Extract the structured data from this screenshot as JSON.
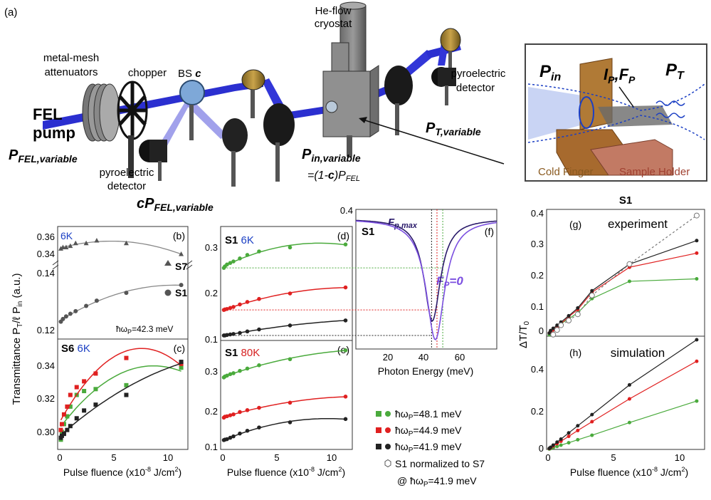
{
  "setup": {
    "panel_tag": "(a)",
    "he_flow_1": "He-flow",
    "he_flow_2": "cryostat",
    "mesh_1": "metal-mesh",
    "mesh_2": "attenuators",
    "chopper": "chopper",
    "bs": "BS",
    "bs_c": "c",
    "pyro_right_1": "pyroelectric",
    "pyro_right_2": "detector",
    "pyro_left_1": "pyroelectric",
    "pyro_left_2": "detector",
    "fel_1": "FEL",
    "fel_2": "pump",
    "p_fel": "P",
    "p_fel_sub": "FEL,variable",
    "p_t": "P",
    "p_t_sub": "T,variable",
    "p_in": "P",
    "p_in_sub": "in,variable",
    "p_in_eq": "=(1-",
    "p_in_eq_c": "c",
    "p_in_eq_end": ")P",
    "p_in_eq_sub": "FEL",
    "cp_c": "cP",
    "cp_sub": "FEL,variable"
  },
  "inset": {
    "p_in": "P",
    "p_in_sub": "in",
    "ip": "I",
    "ip_sub": "P",
    "fp_comma": ",",
    "fp": "F",
    "fp_sub": "P",
    "pt": "P",
    "pt_sub": "T",
    "cold_finger": "Cold Finger",
    "sample_holder": "Sample Holder"
  },
  "colors": {
    "green": "#4aaa3c",
    "red": "#e02020",
    "black": "#222222",
    "blue_label": "#1b3fc4",
    "red_label": "#d62020",
    "purple": "#7b4fe0",
    "navy": "#2a1a6a"
  },
  "chart_data": [
    {
      "id": "b",
      "type": "scatter",
      "tag": "(b)",
      "temp": "6K",
      "label_s7": "S7",
      "label_s1": "S1",
      "annot": "ħω",
      "annot_sub": "P",
      "annot_val": "=42.3 meV",
      "yticks_top": [
        "0.36",
        "0.34"
      ],
      "yticks_bot": [
        "0.14",
        "0.12"
      ],
      "series": [
        {
          "name": "S7",
          "x": [
            0.1,
            0.3,
            0.6,
            1.0,
            1.5,
            2.5,
            3.5,
            6.3,
            11.5
          ],
          "y": [
            0.349,
            0.35,
            0.35,
            0.351,
            0.353,
            0.353,
            0.355,
            0.353,
            0.345
          ]
        },
        {
          "name": "S1",
          "x": [
            0.1,
            0.3,
            0.6,
            1.0,
            1.5,
            2.5,
            3.5,
            6.3,
            11.5
          ],
          "y": [
            0.12,
            0.121,
            0.122,
            0.123,
            0.124,
            0.126,
            0.128,
            0.131,
            0.134
          ]
        }
      ]
    },
    {
      "id": "c",
      "type": "scatter",
      "tag": "(c)",
      "title": "S6",
      "temp": "6K",
      "ylabel": "Transmittance P",
      "ylabel_sub": "T",
      "ylabel_mid": "/ℓ P",
      "ylabel_sub2": "in",
      "ylabel_end": " (a.u.)",
      "xlabel": "Pulse fluence (x10",
      "xlabel_exp": "-8",
      "xlabel_end": " J/cm",
      "xlabel_exp2": "2",
      "xlabel_close": ")",
      "xlim": [
        0,
        12
      ],
      "ylim": [
        0.287,
        0.343
      ],
      "xticks": [
        "0",
        "5",
        "10"
      ],
      "yticks": [
        "0.30",
        "0.32",
        "0.34"
      ],
      "series": [
        {
          "name": "48.1 meV",
          "color": "#4aaa3c",
          "x": [
            0.1,
            0.2,
            0.4,
            0.7,
            1.0,
            1.6,
            2.3,
            3.4,
            6.3,
            11.5
          ],
          "y": [
            0.292,
            0.296,
            0.3,
            0.304,
            0.309,
            0.315,
            0.317,
            0.318,
            0.32,
            0.329
          ]
        },
        {
          "name": "44.9 meV",
          "color": "#e02020",
          "x": [
            0.1,
            0.2,
            0.4,
            0.7,
            1.0,
            1.6,
            2.3,
            3.4,
            6.3,
            11.5
          ],
          "y": [
            0.297,
            0.3,
            0.305,
            0.309,
            0.315,
            0.319,
            0.322,
            0.326,
            0.334,
            0.331
          ]
        },
        {
          "name": "41.9 meV",
          "color": "#222222",
          "x": [
            0.1,
            0.2,
            0.4,
            0.7,
            1.0,
            1.6,
            2.3,
            3.4,
            6.3,
            11.5
          ],
          "y": [
            0.293,
            0.294,
            0.295,
            0.297,
            0.299,
            0.303,
            0.307,
            0.31,
            0.315,
            0.332
          ]
        }
      ]
    },
    {
      "id": "d",
      "type": "scatter",
      "tag": "(d)",
      "title": "S1",
      "temp": "6K",
      "xlim": [
        0,
        12
      ],
      "ylim": [
        0.11,
        0.335
      ],
      "yticks": [
        "0.1",
        "0.2",
        "0.3"
      ],
      "series": [
        {
          "name": "48.1 meV",
          "color": "#4aaa3c",
          "x": [
            0.1,
            0.2,
            0.4,
            0.7,
            1.0,
            1.6,
            2.3,
            3.4,
            6.3,
            11.5
          ],
          "y": [
            0.255,
            0.258,
            0.262,
            0.265,
            0.268,
            0.274,
            0.281,
            0.288,
            0.296,
            0.302
          ]
        },
        {
          "name": "44.9 meV",
          "color": "#e02020",
          "x": [
            0.1,
            0.2,
            0.4,
            0.7,
            1.0,
            1.6,
            2.3,
            3.4,
            6.3,
            11.5
          ],
          "y": [
            0.171,
            0.172,
            0.173,
            0.175,
            0.177,
            0.182,
            0.187,
            0.193,
            0.204,
            0.216
          ]
        },
        {
          "name": "41.9 meV",
          "color": "#222222",
          "x": [
            0.1,
            0.2,
            0.4,
            0.7,
            1.0,
            1.6,
            2.3,
            3.4,
            6.3,
            11.5
          ],
          "y": [
            0.12,
            0.12,
            0.121,
            0.122,
            0.123,
            0.125,
            0.128,
            0.132,
            0.14,
            0.15
          ]
        }
      ]
    },
    {
      "id": "e",
      "type": "scatter",
      "tag": "(e)",
      "title": "S1",
      "temp": "80K",
      "xlabel": "Pulse fluence (x10",
      "xlabel_exp": "-8",
      "xlabel_end": " J/cm",
      "xlabel_exp2": "2",
      "xlabel_close": ")",
      "xlim": [
        0,
        12
      ],
      "ylim": [
        0.1,
        0.33
      ],
      "xticks": [
        "0",
        "5",
        "10"
      ],
      "yticks": [
        "0.1",
        "0.2",
        "0.3"
      ],
      "series": [
        {
          "name": "48.1 meV",
          "color": "#4aaa3c",
          "x": [
            0.1,
            0.2,
            0.4,
            0.7,
            1.0,
            1.6,
            2.3,
            3.4,
            6.3,
            11.5
          ],
          "y": [
            0.254,
            0.256,
            0.258,
            0.261,
            0.263,
            0.268,
            0.273,
            0.28,
            0.293,
            0.312
          ]
        },
        {
          "name": "44.9 meV",
          "color": "#e02020",
          "x": [
            0.1,
            0.2,
            0.4,
            0.7,
            1.0,
            1.6,
            2.3,
            3.4,
            6.3,
            11.5
          ],
          "y": [
            0.168,
            0.17,
            0.171,
            0.173,
            0.175,
            0.18,
            0.184,
            0.189,
            0.2,
            0.213
          ]
        },
        {
          "name": "41.9 meV",
          "color": "#222222",
          "x": [
            0.1,
            0.2,
            0.4,
            0.7,
            1.0,
            1.6,
            2.3,
            3.4,
            6.3,
            11.5
          ],
          "y": [
            0.12,
            0.121,
            0.122,
            0.125,
            0.128,
            0.134,
            0.14,
            0.147,
            0.158,
            0.165
          ]
        }
      ]
    },
    {
      "id": "f",
      "type": "line",
      "tag": "(f)",
      "title": "S1",
      "label_max": "F",
      "label_max_sub": "p,max",
      "label_zero": "F",
      "label_zero_sub": "P",
      "label_zero_eq": "=0",
      "xlabel": "Photon Energy (meV)",
      "xlim": [
        0,
        78
      ],
      "ylim": [
        0.1,
        0.4
      ],
      "xticks": [
        "20",
        "40",
        "60"
      ],
      "ytick": "0.4",
      "series": [
        {
          "name": "F_p,max",
          "color": "#2a1a6a",
          "center": 42.3,
          "width": 5.5,
          "depth": 0.22,
          "base": 0.38
        },
        {
          "name": "F_P=0",
          "color": "#7b4fe0",
          "center": 44.0,
          "width": 6.2,
          "depth": 0.26,
          "base": 0.38
        }
      ],
      "markers": [
        41.9,
        44.9,
        48.1
      ]
    },
    {
      "id": "g",
      "type": "line",
      "tag": "(g)",
      "title": "S1",
      "subtitle": "experiment",
      "ylabel": "ΔT/T",
      "ylabel_sub": "0",
      "xlim": [
        0,
        12
      ],
      "ylim": [
        0,
        0.4
      ],
      "yticks": [
        "0",
        "0.1",
        "0.2",
        "0.3",
        "0.4"
      ],
      "series": [
        {
          "name": "48.1 meV",
          "color": "#4aaa3c",
          "x": [
            0.1,
            0.2,
            0.4,
            0.7,
            1.0,
            1.6,
            2.3,
            3.4,
            6.3,
            11.5
          ],
          "y": [
            0.005,
            0.012,
            0.02,
            0.03,
            0.04,
            0.055,
            0.075,
            0.12,
            0.175,
            0.183
          ]
        },
        {
          "name": "44.9 meV",
          "color": "#e02020",
          "x": [
            0.1,
            0.2,
            0.4,
            0.7,
            1.0,
            1.6,
            2.3,
            3.4,
            6.3,
            11.5
          ],
          "y": [
            0.01,
            0.015,
            0.02,
            0.03,
            0.04,
            0.062,
            0.085,
            0.14,
            0.22,
            0.265
          ]
        },
        {
          "name": "41.9 meV",
          "color": "#222222",
          "x": [
            0.1,
            0.2,
            0.4,
            0.7,
            1.0,
            1.6,
            2.3,
            3.4,
            6.3,
            11.5
          ],
          "y": [
            0.01,
            0.018,
            0.025,
            0.035,
            0.045,
            0.065,
            0.09,
            0.145,
            0.23,
            0.305
          ]
        },
        {
          "name": "S1 normalized to S7",
          "color": "#777777",
          "dashed": true,
          "hollow": true,
          "x": [
            0.4,
            0.7,
            1.0,
            1.6,
            2.3,
            3.4,
            6.3,
            11.5
          ],
          "y": [
            0.005,
            0.02,
            0.035,
            0.05,
            0.07,
            0.13,
            0.23,
            0.385
          ]
        }
      ]
    },
    {
      "id": "h",
      "type": "line",
      "tag": "(h)",
      "subtitle": "simulation",
      "xlabel": "Pulse fluence (x10",
      "xlabel_exp": "-8",
      "xlabel_end": " J/cm",
      "xlabel_exp2": "2",
      "xlabel_close": ")",
      "xlim": [
        0,
        12
      ],
      "ylim": [
        0,
        0.52
      ],
      "xticks": [
        "0",
        "5",
        "10"
      ],
      "yticks": [
        "0",
        "0.2",
        "0.4"
      ],
      "series": [
        {
          "name": "48.1 meV",
          "color": "#4aaa3c",
          "x": [
            0.1,
            0.2,
            0.4,
            0.7,
            1.0,
            1.6,
            2.3,
            3.4,
            6.3,
            11.5
          ],
          "y": [
            0.002,
            0.004,
            0.008,
            0.014,
            0.02,
            0.031,
            0.045,
            0.066,
            0.125,
            0.225
          ]
        },
        {
          "name": "44.9 meV",
          "color": "#e02020",
          "x": [
            0.1,
            0.2,
            0.4,
            0.7,
            1.0,
            1.6,
            2.3,
            3.4,
            6.3,
            11.5
          ],
          "y": [
            0.004,
            0.008,
            0.016,
            0.027,
            0.038,
            0.061,
            0.088,
            0.129,
            0.235,
            0.41
          ]
        },
        {
          "name": "41.9 meV",
          "color": "#222222",
          "x": [
            0.1,
            0.2,
            0.4,
            0.7,
            1.0,
            1.6,
            2.3,
            3.4,
            6.3,
            11.5
          ],
          "y": [
            0.005,
            0.01,
            0.02,
            0.034,
            0.048,
            0.077,
            0.11,
            0.162,
            0.3,
            0.51
          ]
        }
      ]
    }
  ],
  "legend": {
    "items": [
      {
        "pre": "ħω",
        "sub": "P",
        "val": "=48.1 meV",
        "color": "#4aaa3c"
      },
      {
        "pre": "ħω",
        "sub": "P",
        "val": "=44.9 meV",
        "color": "#e02020"
      },
      {
        "pre": "ħω",
        "sub": "P",
        "val": "=41.9 meV",
        "color": "#222222"
      }
    ],
    "hex_1": "S1 normalized to S7",
    "hex_2a": "@",
    "hex_2b": "ħω",
    "hex_2sub": "P",
    "hex_2val": "=41.9 meV"
  }
}
